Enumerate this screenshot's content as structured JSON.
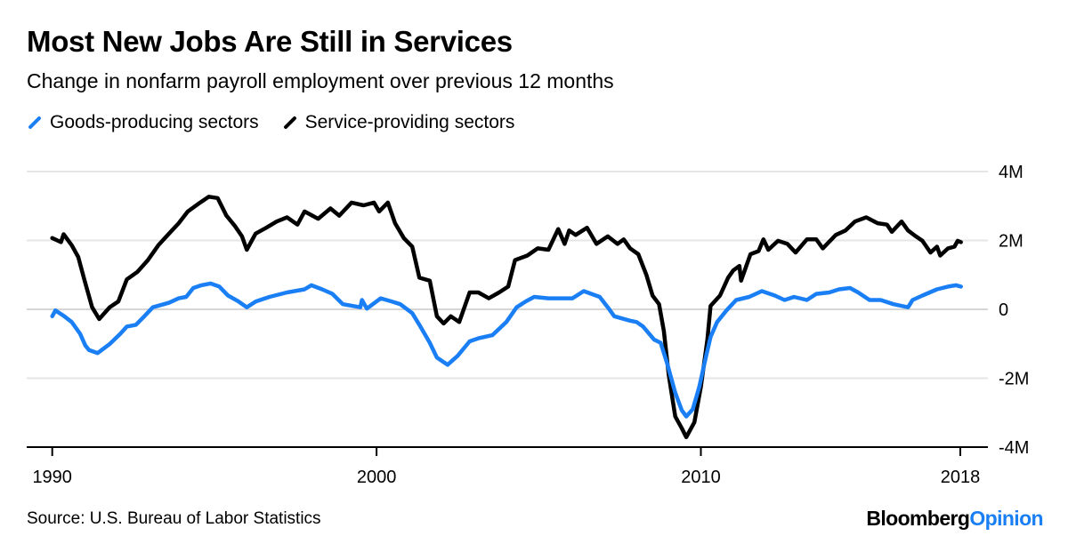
{
  "header": {
    "title": "Most New Jobs Are Still in Services",
    "subtitle": "Change in nonfarm payroll employment over previous 12 months"
  },
  "footer": {
    "source": "Source: U.S. Bureau of Labor Statistics",
    "logo_part1": "Bloomberg",
    "logo_part2": "Opinion"
  },
  "colors": {
    "goods": "#1a7ff5",
    "services": "#000000",
    "grid": "#e6e6e6",
    "logo_accent": "#1a7ff5"
  },
  "chart_data": {
    "type": "line",
    "title": "Most New Jobs Are Still in Services",
    "subtitle": "Change in nonfarm payroll employment over previous 12 months",
    "xlabel": "",
    "ylabel": "",
    "xlim": [
      1990,
      2018
    ],
    "ylim": [
      -4,
      4
    ],
    "y_unit": "millions",
    "x_ticks": [
      {
        "value": 1990,
        "label": "1990"
      },
      {
        "value": 2000,
        "label": "2000"
      },
      {
        "value": 2010,
        "label": "2010"
      },
      {
        "value": 2018,
        "label": "2018"
      }
    ],
    "y_ticks": [
      {
        "value": 4,
        "label": "4M"
      },
      {
        "value": 2,
        "label": "2M"
      },
      {
        "value": 0,
        "label": "0"
      },
      {
        "value": -2,
        "label": "-2M"
      },
      {
        "value": -4,
        "label": "-4M"
      }
    ],
    "grid": true,
    "legend_position": "top-left",
    "series": [
      {
        "name": "Goods-producing sectors",
        "color": "#1a7ff5",
        "x": [
          1990.0,
          1990.1,
          1990.37,
          1990.6,
          1990.86,
          1991.02,
          1991.13,
          1991.4,
          1991.77,
          1992.1,
          1992.3,
          1992.58,
          1992.84,
          1993.1,
          1993.6,
          1993.9,
          1994.13,
          1994.35,
          1994.6,
          1994.88,
          1995.15,
          1995.42,
          1995.74,
          1996.0,
          1996.28,
          1996.7,
          1997.24,
          1997.78,
          1997.99,
          1998.32,
          1998.64,
          1998.96,
          1999.5,
          1999.55,
          1999.7,
          2000.13,
          2000.46,
          2000.73,
          2001.1,
          2001.32,
          2001.64,
          2001.86,
          2002.19,
          2002.5,
          2002.87,
          2003.14,
          2003.57,
          2004.0,
          2004.32,
          2004.6,
          2004.86,
          2005.3,
          2005.72,
          2006.04,
          2006.39,
          2006.88,
          2007.13,
          2007.33,
          2007.82,
          2008.02,
          2008.22,
          2008.56,
          2008.76,
          2008.96,
          2009.21,
          2009.41,
          2009.55,
          2009.75,
          2009.95,
          2010.15,
          2010.3,
          2010.5,
          2010.79,
          2011.09,
          2011.49,
          2011.88,
          2012.28,
          2012.58,
          2012.87,
          2013.27,
          2013.56,
          2013.96,
          2014.26,
          2014.6,
          2014.85,
          2015.2,
          2015.54,
          2015.94,
          2016.39,
          2016.53,
          2016.83,
          2017.28,
          2017.62,
          2017.87,
          2018.02
        ],
        "values": [
          -0.2,
          -0.03,
          -0.2,
          -0.37,
          -0.71,
          -1.05,
          -1.18,
          -1.27,
          -1.01,
          -0.71,
          -0.5,
          -0.45,
          -0.2,
          0.06,
          0.19,
          0.32,
          0.36,
          0.62,
          0.7,
          0.75,
          0.66,
          0.4,
          0.23,
          0.06,
          0.23,
          0.36,
          0.49,
          0.58,
          0.7,
          0.58,
          0.45,
          0.15,
          0.06,
          0.27,
          0.02,
          0.32,
          0.23,
          0.15,
          -0.11,
          -0.45,
          -0.97,
          -1.4,
          -1.61,
          -1.35,
          -0.93,
          -0.84,
          -0.75,
          -0.37,
          0.06,
          0.23,
          0.36,
          0.32,
          0.32,
          0.32,
          0.53,
          0.36,
          0.06,
          -0.2,
          -0.33,
          -0.37,
          -0.5,
          -0.88,
          -0.97,
          -1.57,
          -2.42,
          -2.93,
          -3.11,
          -2.9,
          -2.25,
          -1.4,
          -0.8,
          -0.37,
          -0.03,
          0.27,
          0.36,
          0.53,
          0.4,
          0.27,
          0.36,
          0.27,
          0.45,
          0.49,
          0.58,
          0.62,
          0.49,
          0.27,
          0.27,
          0.15,
          0.06,
          0.27,
          0.4,
          0.58,
          0.66,
          0.7,
          0.66
        ]
      },
      {
        "name": "Service-providing sectors",
        "color": "#000000",
        "x": [
          1990.0,
          1990.27,
          1990.35,
          1990.6,
          1990.8,
          1991.0,
          1991.23,
          1991.45,
          1991.77,
          1992.04,
          1992.3,
          1992.63,
          1992.95,
          1993.27,
          1993.6,
          1993.9,
          1994.18,
          1994.5,
          1994.83,
          1995.1,
          1995.37,
          1995.63,
          1995.85,
          1996.0,
          1996.27,
          1996.6,
          1996.92,
          1997.24,
          1997.56,
          1997.78,
          1998.2,
          1998.58,
          1998.85,
          1999.23,
          1999.6,
          1999.92,
          2000.08,
          2000.35,
          2000.57,
          2000.84,
          2001.1,
          2001.32,
          2001.64,
          2001.86,
          2002.07,
          2002.29,
          2002.55,
          2002.87,
          2003.14,
          2003.46,
          2003.78,
          2004.06,
          2004.27,
          2004.65,
          2004.97,
          2005.3,
          2005.6,
          2005.8,
          2005.94,
          2006.14,
          2006.49,
          2006.78,
          2007.13,
          2007.43,
          2007.62,
          2007.82,
          2008.07,
          2008.32,
          2008.51,
          2008.71,
          2008.86,
          2009.01,
          2009.21,
          2009.41,
          2009.55,
          2009.8,
          2010.0,
          2010.2,
          2010.3,
          2010.59,
          2010.84,
          2011.0,
          2011.19,
          2011.24,
          2011.53,
          2011.78,
          2011.93,
          2012.08,
          2012.38,
          2012.67,
          2012.92,
          2013.27,
          2013.56,
          2013.76,
          2014.16,
          2014.46,
          2014.75,
          2015.1,
          2015.45,
          2015.74,
          2015.89,
          2016.19,
          2016.39,
          2016.63,
          2016.83,
          2017.08,
          2017.28,
          2017.38,
          2017.62,
          2017.82,
          2017.92,
          2018.02
        ],
        "values": [
          2.07,
          1.95,
          2.18,
          1.86,
          1.52,
          0.83,
          0.06,
          -0.28,
          0.06,
          0.23,
          0.87,
          1.09,
          1.43,
          1.86,
          2.2,
          2.5,
          2.84,
          3.06,
          3.27,
          3.23,
          2.72,
          2.42,
          2.12,
          1.73,
          2.2,
          2.37,
          2.55,
          2.67,
          2.46,
          2.84,
          2.63,
          2.93,
          2.72,
          3.1,
          3.02,
          3.1,
          2.84,
          3.1,
          2.5,
          2.07,
          1.82,
          0.92,
          0.83,
          -0.2,
          -0.41,
          -0.2,
          -0.37,
          0.49,
          0.49,
          0.32,
          0.49,
          0.66,
          1.43,
          1.56,
          1.77,
          1.73,
          2.33,
          1.9,
          2.29,
          2.16,
          2.37,
          1.9,
          2.12,
          1.9,
          2.03,
          1.77,
          1.6,
          1.0,
          0.4,
          0.15,
          -0.63,
          -1.91,
          -3.11,
          -3.45,
          -3.71,
          -3.28,
          -2.25,
          -0.88,
          0.1,
          0.4,
          0.92,
          1.13,
          1.26,
          0.83,
          1.6,
          1.69,
          2.03,
          1.73,
          1.99,
          1.9,
          1.65,
          2.03,
          2.03,
          1.77,
          2.16,
          2.29,
          2.55,
          2.67,
          2.5,
          2.46,
          2.25,
          2.55,
          2.29,
          2.12,
          1.99,
          1.65,
          1.82,
          1.56,
          1.77,
          1.82,
          1.99,
          1.95
        ]
      }
    ]
  }
}
